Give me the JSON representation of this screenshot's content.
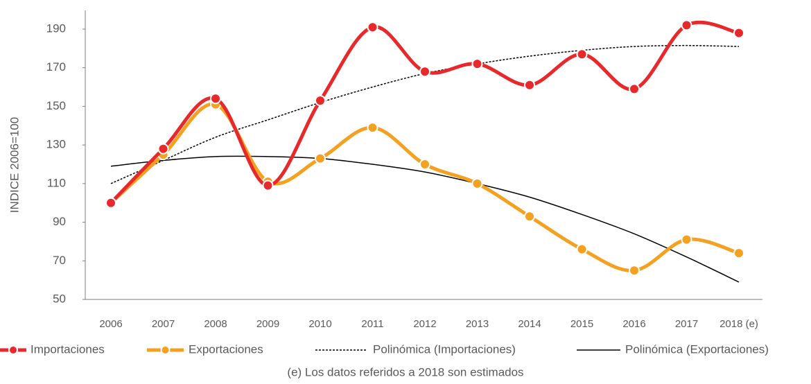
{
  "chart_data": {
    "type": "line",
    "y_label": "INDICE  2006=100",
    "note": "(e) Los datos referidos a 2018 son estimados",
    "categories": [
      "2006",
      "2007",
      "2008",
      "2009",
      "2010",
      "2011",
      "2012",
      "2013",
      "2014",
      "2015",
      "2016",
      "2017",
      "2018 (e)"
    ],
    "series": [
      {
        "name": "Importaciones",
        "color": "#e8282b",
        "markers": true,
        "smooth": true,
        "values": [
          100,
          128,
          154,
          109,
          153,
          191,
          168,
          172,
          161,
          177,
          159,
          192,
          188
        ]
      },
      {
        "name": "Exportaciones",
        "color": "#f4a020",
        "markers": true,
        "smooth": true,
        "values": [
          100,
          125,
          151,
          111,
          123,
          139,
          120,
          110,
          93,
          76,
          65,
          81,
          74
        ]
      },
      {
        "name": "Polinómica (Importaciones)",
        "color": "#000000",
        "line_style": "dashed",
        "values": [
          110,
          122,
          134,
          143,
          152,
          160,
          167,
          172,
          176,
          179,
          181,
          181.5,
          181
        ]
      },
      {
        "name": "Polinómica (Exportaciones)",
        "color": "#000000",
        "line_style": "solid",
        "values": [
          119,
          122,
          124,
          124,
          123,
          120,
          116,
          110,
          103,
          94,
          84,
          72,
          59
        ]
      }
    ],
    "ylim": [
      50,
      190
    ],
    "yticks": [
      50,
      70,
      90,
      110,
      130,
      150,
      170,
      190
    ]
  }
}
